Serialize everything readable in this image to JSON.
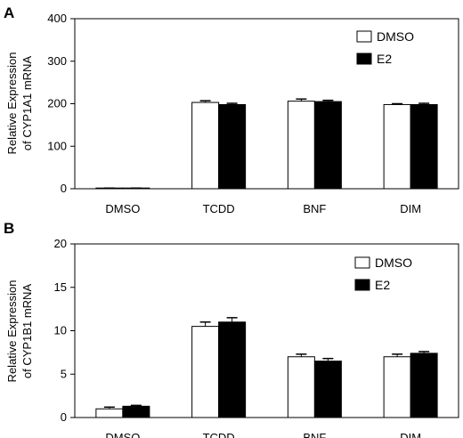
{
  "figure": {
    "panels": [
      {
        "label": "A",
        "ylabel_lines": [
          "Relative Expression",
          "of CYP1A1 mRNA"
        ],
        "legend": [
          {
            "text": "DMSO",
            "fill": "#ffffff"
          },
          {
            "text": "E2",
            "fill": "#000000"
          }
        ]
      },
      {
        "label": "B",
        "ylabel_lines": [
          "Relative Expression",
          "of CYP1B1 mRNA"
        ],
        "legend": [
          {
            "text": "DMSO",
            "fill": "#ffffff"
          },
          {
            "text": "E2",
            "fill": "#000000"
          }
        ]
      }
    ]
  },
  "chart_data": [
    {
      "type": "bar",
      "title": "",
      "xlabel": "",
      "ylabel": "Relative Expression of CYP1A1 mRNA",
      "categories": [
        "DMSO",
        "TCDD",
        "BNF",
        "DIM"
      ],
      "ylim": [
        0,
        400
      ],
      "yticks": [
        0,
        100,
        200,
        300,
        400
      ],
      "grid": false,
      "legend_position": "top-right",
      "series": [
        {
          "name": "DMSO",
          "color": "#ffffff",
          "values": [
            1,
            203,
            206,
            198
          ],
          "errors": [
            0.5,
            4,
            5,
            2
          ]
        },
        {
          "name": "E2",
          "color": "#000000",
          "values": [
            1,
            198,
            205,
            198
          ],
          "errors": [
            0.5,
            3,
            3,
            3
          ]
        }
      ]
    },
    {
      "type": "bar",
      "title": "",
      "xlabel": "",
      "ylabel": "Relative Expression of CYP1B1 mRNA",
      "categories": [
        "DMSO",
        "TCDD",
        "BNF",
        "DIM"
      ],
      "ylim": [
        0,
        20
      ],
      "yticks": [
        0,
        5,
        10,
        15,
        20
      ],
      "grid": false,
      "legend_position": "top-right",
      "series": [
        {
          "name": "DMSO",
          "color": "#ffffff",
          "values": [
            1.0,
            10.5,
            7.0,
            7.0
          ],
          "errors": [
            0.2,
            0.5,
            0.3,
            0.3
          ]
        },
        {
          "name": "E2",
          "color": "#000000",
          "values": [
            1.3,
            11.0,
            6.5,
            7.4
          ],
          "errors": [
            0.1,
            0.5,
            0.3,
            0.2
          ]
        }
      ]
    }
  ]
}
